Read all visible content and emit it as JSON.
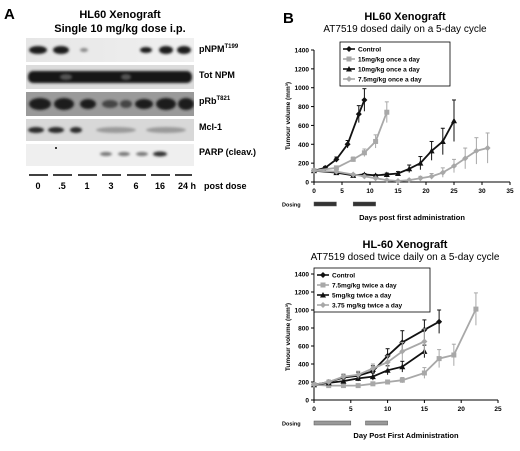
{
  "panel_a": {
    "letter": "A",
    "title": "HL60 Xenograft",
    "subtitle": "Single 10 mg/kg dose i.p.",
    "blots": [
      {
        "label": "pNPM",
        "sup": "T199"
      },
      {
        "label": "Tot NPM",
        "sup": ""
      },
      {
        "label": "pRb",
        "sup": "T821"
      },
      {
        "label": "Mcl-1",
        "sup": ""
      },
      {
        "label": "PARP (cleav.)",
        "sup": ""
      }
    ],
    "timepoints": [
      "0",
      ".5",
      "1",
      "3",
      "6",
      "16",
      "24 h"
    ],
    "post_label": "post dose"
  },
  "panel_b": {
    "letter": "B",
    "top_title": "HL60 Xenograft",
    "top_subtitle": "AT7519 dosed daily on a 5-day cycle",
    "bottom_title": "HL-60 Xenograft",
    "bottom_subtitle": "AT7519 dosed twice daily on a 5-day cycle",
    "dosing_label": "Dosing"
  },
  "chart_data": [
    {
      "type": "line",
      "title": "HL60 Xenograft",
      "subtitle": "AT7519 dosed daily on a 5-day cycle",
      "xlabel": "Days post first administration",
      "ylabel": "Tumour volume (mm³)",
      "xlim": [
        0,
        35
      ],
      "ylim": [
        0,
        1400
      ],
      "xticks": [
        0,
        5,
        10,
        15,
        20,
        25,
        30,
        35
      ],
      "yticks": [
        0,
        200,
        400,
        600,
        800,
        1000,
        1200,
        1400
      ],
      "legend_position": "top-center",
      "series": [
        {
          "name": "Control",
          "color": "#111111",
          "marker": "diamond",
          "x": [
            0,
            2,
            4,
            6,
            8,
            9
          ],
          "y": [
            120,
            150,
            240,
            400,
            720,
            870
          ],
          "err": [
            10,
            15,
            25,
            40,
            90,
            120
          ]
        },
        {
          "name": "15mg/kg once a day",
          "color": "#a8a8a8",
          "marker": "square",
          "x": [
            0,
            4,
            7,
            9,
            11,
            13
          ],
          "y": [
            120,
            150,
            240,
            310,
            430,
            740
          ],
          "err": [
            10,
            15,
            25,
            40,
            70,
            110
          ]
        },
        {
          "name": "10mg/kg once a day",
          "color": "#111111",
          "marker": "triangle",
          "x": [
            0,
            4,
            7,
            9,
            11,
            13,
            15,
            17,
            19,
            21,
            23,
            25
          ],
          "y": [
            120,
            100,
            70,
            80,
            70,
            80,
            90,
            140,
            200,
            330,
            430,
            650
          ],
          "err": [
            10,
            15,
            10,
            10,
            10,
            15,
            20,
            40,
            70,
            100,
            140,
            220
          ]
        },
        {
          "name": "7.5mg/kg once a day",
          "color": "#a8a8a8",
          "marker": "diamond",
          "x": [
            0,
            4,
            7,
            9,
            11,
            13,
            15,
            17,
            19,
            21,
            23,
            25,
            27,
            29,
            31
          ],
          "y": [
            120,
            110,
            80,
            60,
            40,
            20,
            10,
            20,
            40,
            60,
            100,
            170,
            250,
            330,
            360
          ],
          "err": [
            10,
            10,
            10,
            10,
            10,
            10,
            10,
            10,
            20,
            30,
            50,
            70,
            110,
            140,
            160
          ]
        }
      ],
      "dosing_periods": [
        [
          0,
          4
        ],
        [
          7,
          11
        ]
      ],
      "dosing_label": "Dosing"
    },
    {
      "type": "line",
      "title": "HL-60 Xenograft",
      "subtitle": "AT7519 dosed twice daily on a 5-day cycle",
      "xlabel": "Day Post First Administration",
      "ylabel": "Tumour volume (mm³)",
      "xlim": [
        0,
        25
      ],
      "ylim": [
        0,
        1400
      ],
      "xticks": [
        0,
        5,
        10,
        15,
        20,
        25
      ],
      "yticks": [
        0,
        200,
        400,
        600,
        800,
        1000,
        1200,
        1400
      ],
      "legend_position": "top-left",
      "series": [
        {
          "name": "Control",
          "color": "#111111",
          "marker": "diamond",
          "x": [
            0,
            2,
            4,
            6,
            8,
            10,
            12,
            15,
            17
          ],
          "y": [
            170,
            200,
            250,
            270,
            320,
            490,
            640,
            780,
            870
          ],
          "err": [
            15,
            20,
            30,
            40,
            60,
            80,
            130,
            110,
            130
          ]
        },
        {
          "name": "7.5mg/kg twice a day",
          "color": "#a8a8a8",
          "marker": "square",
          "x": [
            0,
            2,
            4,
            6,
            8,
            10,
            12,
            15,
            17,
            19,
            22
          ],
          "y": [
            170,
            160,
            160,
            160,
            180,
            200,
            220,
            300,
            460,
            500,
            1010
          ],
          "err": [
            15,
            15,
            15,
            15,
            20,
            20,
            30,
            60,
            100,
            120,
            180
          ]
        },
        {
          "name": "5mg/kg twice a day",
          "color": "#111111",
          "marker": "triangle",
          "x": [
            0,
            2,
            4,
            6,
            8,
            10,
            12,
            15
          ],
          "y": [
            170,
            190,
            210,
            240,
            260,
            330,
            370,
            540
          ],
          "err": [
            15,
            20,
            25,
            30,
            40,
            50,
            60,
            70
          ]
        },
        {
          "name": "3.75 mg/kg twice a day",
          "color": "#a8a8a8",
          "marker": "diamond",
          "x": [
            0,
            2,
            4,
            6,
            8,
            10,
            12,
            15
          ],
          "y": [
            170,
            200,
            260,
            280,
            350,
            420,
            540,
            650
          ],
          "err": [
            15,
            20,
            30,
            40,
            50,
            70,
            100,
            140
          ]
        }
      ],
      "dosing_periods": [
        [
          0,
          5
        ],
        [
          7,
          10
        ]
      ],
      "dosing_label": "Dosing"
    }
  ]
}
